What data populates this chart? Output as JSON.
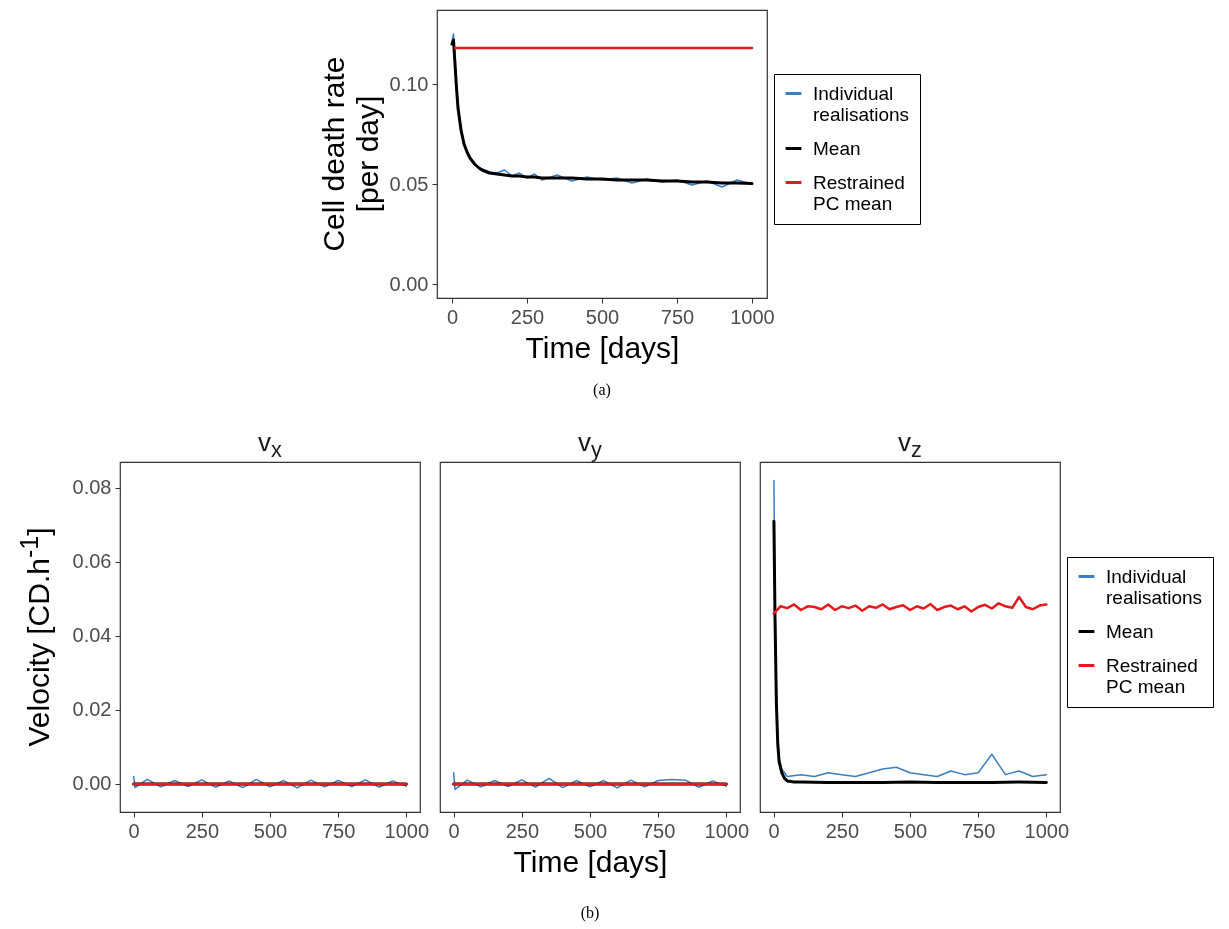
{
  "chart_data": [
    {
      "type": "line",
      "ylabel": "Cell death rate\n[per day]",
      "xlabel": "Time [days]",
      "annotations": [
        "(a)"
      ],
      "legend": "right",
      "xlim": [
        -50,
        1050
      ],
      "xticks": [
        0,
        250,
        500,
        750,
        1000
      ],
      "ylim": [
        -0.007,
        0.137
      ],
      "yticks": [
        {
          "value": 0,
          "label": "0.00"
        },
        {
          "value": 0.05,
          "label": "0.05"
        },
        {
          "value": 0.1,
          "label": "0.10"
        }
      ],
      "series": [
        {
          "name": "Individual realisations",
          "color": "#3a7fbf",
          "x": [
            0,
            5,
            10,
            15,
            20,
            30,
            40,
            50,
            60,
            75,
            90,
            100,
            125,
            150,
            175,
            200,
            225,
            250,
            275,
            300,
            350,
            400,
            450,
            500,
            550,
            600,
            650,
            700,
            750,
            800,
            850,
            900,
            950,
            1000
          ],
          "values": [
            0.121,
            0.125,
            0.112,
            0.1,
            0.09,
            0.078,
            0.07,
            0.066,
            0.063,
            0.06,
            0.058,
            0.0575,
            0.056,
            0.0555,
            0.057,
            0.054,
            0.0555,
            0.053,
            0.055,
            0.052,
            0.0545,
            0.0515,
            0.0535,
            0.052,
            0.053,
            0.0505,
            0.0525,
            0.051,
            0.052,
            0.0495,
            0.0515,
            0.0485,
            0.052,
            0.05
          ]
        },
        {
          "name": "Mean",
          "color": "#000000",
          "x": [
            0,
            5,
            10,
            15,
            20,
            30,
            40,
            50,
            60,
            75,
            90,
            100,
            125,
            150,
            175,
            200,
            225,
            250,
            275,
            300,
            350,
            400,
            450,
            500,
            550,
            600,
            650,
            700,
            750,
            800,
            850,
            900,
            950,
            1000
          ],
          "values": [
            0.12,
            0.122,
            0.11,
            0.098,
            0.088,
            0.077,
            0.07,
            0.066,
            0.063,
            0.06,
            0.058,
            0.057,
            0.0555,
            0.055,
            0.0545,
            0.054,
            0.054,
            0.0535,
            0.0535,
            0.053,
            0.053,
            0.053,
            0.0525,
            0.0525,
            0.052,
            0.052,
            0.052,
            0.0515,
            0.0515,
            0.051,
            0.051,
            0.0505,
            0.0505,
            0.0502
          ]
        },
        {
          "name": "Restrained PC mean",
          "color": "#e41a1c",
          "x": [
            10,
            100,
            200,
            300,
            400,
            500,
            600,
            700,
            800,
            900,
            1000
          ],
          "values": [
            0.118,
            0.118,
            0.118,
            0.118,
            0.118,
            0.118,
            0.118,
            0.118,
            0.118,
            0.118,
            0.118
          ]
        }
      ]
    },
    {
      "type": "line",
      "title": "v$_{x}$",
      "ylabel": "Velocity [CD.h$^{-1}$]",
      "legend": false,
      "xlim": [
        -50,
        1050
      ],
      "xticks": [
        0,
        250,
        500,
        750,
        1000
      ],
      "ylim": [
        -0.0076,
        0.087
      ],
      "yticks": [
        {
          "value": 0,
          "label": "0.00"
        },
        {
          "value": 0.02,
          "label": "0.02"
        },
        {
          "value": 0.04,
          "label": "0.04"
        },
        {
          "value": 0.06,
          "label": "0.06"
        },
        {
          "value": 0.08,
          "label": "0.08"
        }
      ],
      "series": [
        {
          "color": "#3a7fbf",
          "x": [
            0,
            5,
            50,
            100,
            150,
            200,
            250,
            300,
            350,
            400,
            450,
            500,
            550,
            600,
            650,
            700,
            750,
            800,
            850,
            900,
            950,
            1000
          ],
          "values": [
            0.002,
            -0.001,
            0.0012,
            -0.0008,
            0.0009,
            -0.0007,
            0.0011,
            -0.0009,
            0.0008,
            -0.001,
            0.0012,
            -0.0008,
            0.0009,
            -0.0011,
            0.001,
            -0.0008,
            0.0009,
            -0.0007,
            0.0011,
            -0.0009,
            0.0008,
            -0.0006
          ]
        },
        {
          "color": "#000000",
          "x": [
            0,
            1000
          ],
          "values": [
            0,
            0
          ]
        },
        {
          "color": "#e41a1c",
          "x": [
            0,
            1000
          ],
          "values": [
            0,
            0
          ]
        }
      ]
    },
    {
      "type": "line",
      "title": "v$_{y}$",
      "xlabel": "Time [days]",
      "annotations": [
        "(b)"
      ],
      "legend": false,
      "tick_labels": "x",
      "xlim": [
        -50,
        1050
      ],
      "xticks": [
        0,
        250,
        500,
        750,
        1000
      ],
      "ylim": [
        -0.0076,
        0.087
      ],
      "series": [
        {
          "color": "#3a7fbf",
          "x": [
            0,
            5,
            50,
            100,
            150,
            200,
            250,
            300,
            350,
            400,
            450,
            500,
            550,
            600,
            650,
            700,
            750,
            800,
            850,
            900,
            950,
            1000
          ],
          "values": [
            0.003,
            -0.0015,
            0.001,
            -0.0008,
            0.0009,
            -0.0007,
            0.0011,
            -0.0009,
            0.0015,
            -0.001,
            0.0009,
            -0.0008,
            0.0009,
            -0.0011,
            0.001,
            -0.0008,
            0.0009,
            0.0012,
            0.001,
            -0.0009,
            0.0008,
            -0.0006
          ]
        },
        {
          "color": "#000000",
          "x": [
            0,
            1000
          ],
          "values": [
            0,
            0
          ]
        },
        {
          "color": "#e41a1c",
          "x": [
            0,
            1000
          ],
          "values": [
            0,
            0
          ]
        }
      ]
    },
    {
      "type": "line",
      "title": "v$_{z}$",
      "legend": "right",
      "tick_labels": "x",
      "xlim": [
        -50,
        1050
      ],
      "xticks": [
        0,
        250,
        500,
        750,
        1000
      ],
      "ylim": [
        -0.0076,
        0.087
      ],
      "series": [
        {
          "name": "Individual realisations",
          "color": "#3a7fbf",
          "x": [
            1,
            5,
            10,
            15,
            20,
            30,
            40,
            50,
            100,
            150,
            200,
            250,
            300,
            350,
            400,
            450,
            500,
            550,
            600,
            650,
            700,
            750,
            800,
            850,
            900,
            950,
            1000
          ],
          "values": [
            0.082,
            0.05,
            0.025,
            0.012,
            0.007,
            0.004,
            0.003,
            0.002,
            0.0025,
            0.002,
            0.003,
            0.0025,
            0.002,
            0.003,
            0.004,
            0.0045,
            0.003,
            0.0025,
            0.002,
            0.0035,
            0.0025,
            0.003,
            0.008,
            0.0025,
            0.0035,
            0.002,
            0.0025
          ]
        },
        {
          "name": "Mean",
          "color": "#000000",
          "x": [
            1,
            5,
            10,
            15,
            20,
            30,
            40,
            50,
            75,
            100,
            200,
            300,
            400,
            500,
            600,
            700,
            800,
            900,
            1000
          ],
          "values": [
            0.071,
            0.045,
            0.022,
            0.011,
            0.006,
            0.003,
            0.0015,
            0.0008,
            0.0005,
            0.0005,
            0.0004,
            0.0004,
            0.0004,
            0.0005,
            0.0004,
            0.0004,
            0.0004,
            0.0005,
            0.0004
          ]
        },
        {
          "name": "Restrained PC mean",
          "color": "#e41a1c",
          "x": [
            0,
            25,
            50,
            75,
            100,
            125,
            150,
            175,
            200,
            225,
            250,
            275,
            300,
            325,
            350,
            375,
            400,
            425,
            450,
            475,
            500,
            525,
            550,
            575,
            600,
            625,
            650,
            675,
            700,
            725,
            750,
            775,
            800,
            825,
            850,
            875,
            900,
            925,
            950,
            975,
            1000
          ],
          "values": [
            0.046,
            0.048,
            0.0475,
            0.0485,
            0.047,
            0.048,
            0.0478,
            0.0472,
            0.0485,
            0.047,
            0.048,
            0.0475,
            0.0482,
            0.0468,
            0.048,
            0.0476,
            0.0485,
            0.0472,
            0.0478,
            0.0483,
            0.047,
            0.048,
            0.0474,
            0.0486,
            0.047,
            0.0478,
            0.0482,
            0.0472,
            0.048,
            0.0466,
            0.0478,
            0.0484,
            0.0474,
            0.0488,
            0.048,
            0.0476,
            0.0505,
            0.0478,
            0.0472,
            0.0482,
            0.0485
          ]
        }
      ]
    }
  ]
}
